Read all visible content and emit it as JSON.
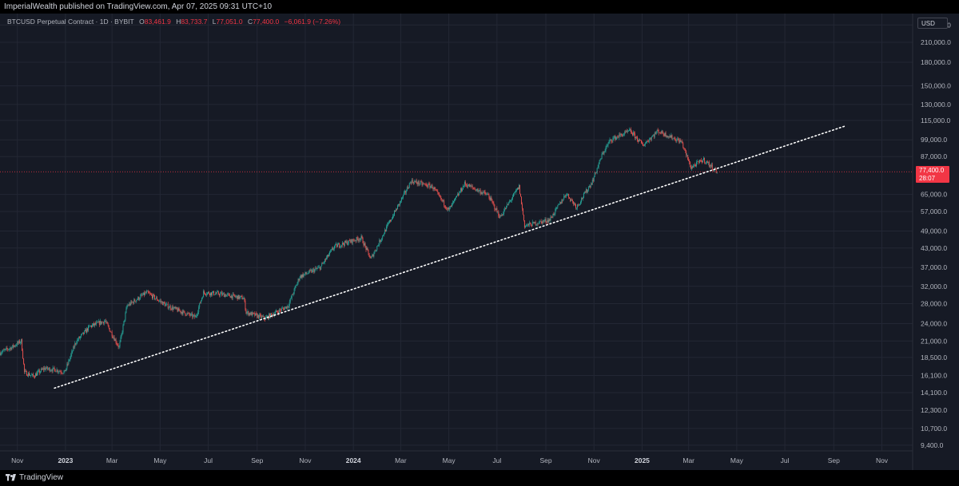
{
  "header": {
    "publisher_line": "ImperialWealth published on TradingView.com, Apr 07, 2025 09:31 UTC+10"
  },
  "legend": {
    "symbol": "BTCUSD Perpetual Contract · 1D · BYBIT",
    "open_label": "O",
    "open_value": "83,461.9",
    "high_label": "H",
    "high_value": "83,733.7",
    "low_label": "L",
    "low_value": "77,051.0",
    "close_label": "C",
    "close_value": "77,400.0",
    "change": "−6,061.9 (−7.26%)"
  },
  "price_scale": {
    "currency": "USD",
    "last_price": "77,400.0",
    "countdown": "28:07"
  },
  "footer": {
    "brand": "TradingView"
  },
  "colors": {
    "background": "#161a25",
    "up": "#26a69a",
    "down": "#ef5350",
    "grid": "#232734",
    "text": "#b2b5be",
    "price_line": "#f23645",
    "trendline": "#ffffff"
  },
  "chart_data": {
    "type": "candlestick",
    "symbol": "BTCUSD",
    "exchange": "BYBIT",
    "interval": "1D",
    "y_scale": "log",
    "x_range": [
      "2022-10-10",
      "2025-12-10"
    ],
    "y_range": [
      9000,
      262000
    ],
    "grid": true,
    "x_tick_labels": [
      {
        "label": "Nov",
        "date": "2022-11-01"
      },
      {
        "label": "2023",
        "date": "2023-01-01"
      },
      {
        "label": "Mar",
        "date": "2023-03-01"
      },
      {
        "label": "May",
        "date": "2023-05-01"
      },
      {
        "label": "Jul",
        "date": "2023-07-01"
      },
      {
        "label": "Sep",
        "date": "2023-09-01"
      },
      {
        "label": "Nov",
        "date": "2023-11-01"
      },
      {
        "label": "2024",
        "date": "2024-01-01"
      },
      {
        "label": "Mar",
        "date": "2024-03-01"
      },
      {
        "label": "May",
        "date": "2024-05-01"
      },
      {
        "label": "Jul",
        "date": "2024-07-01"
      },
      {
        "label": "Sep",
        "date": "2024-09-01"
      },
      {
        "label": "Nov",
        "date": "2024-11-01"
      },
      {
        "label": "2025",
        "date": "2025-01-01"
      },
      {
        "label": "Mar",
        "date": "2025-03-01"
      },
      {
        "label": "May",
        "date": "2025-05-01"
      },
      {
        "label": "Jul",
        "date": "2025-07-01"
      },
      {
        "label": "Sep",
        "date": "2025-09-01"
      },
      {
        "label": "Nov",
        "date": "2025-11-01"
      }
    ],
    "y_tick_labels": [
      {
        "label": "240,000.0",
        "value": 240000
      },
      {
        "label": "210,000.0",
        "value": 210000
      },
      {
        "label": "180,000.0",
        "value": 180000
      },
      {
        "label": "150,000.0",
        "value": 150000
      },
      {
        "label": "130,000.0",
        "value": 130000
      },
      {
        "label": "115,000.0",
        "value": 115000
      },
      {
        "label": "99,000.0",
        "value": 99000
      },
      {
        "label": "87,000.0",
        "value": 87000
      },
      {
        "label": "65,000.0",
        "value": 65000
      },
      {
        "label": "57,000.0",
        "value": 57000
      },
      {
        "label": "49,000.0",
        "value": 49000
      },
      {
        "label": "43,000.0",
        "value": 43000
      },
      {
        "label": "37,000.0",
        "value": 37000
      },
      {
        "label": "32,000.0",
        "value": 32000
      },
      {
        "label": "28,000.0",
        "value": 28000
      },
      {
        "label": "24,000.0",
        "value": 24000
      },
      {
        "label": "21,000.0",
        "value": 21000
      },
      {
        "label": "18,500.0",
        "value": 18500
      },
      {
        "label": "16,100.0",
        "value": 16100
      },
      {
        "label": "14,100.0",
        "value": 14100
      },
      {
        "label": "12,300.0",
        "value": 12300
      },
      {
        "label": "10,700.0",
        "value": 10700
      },
      {
        "label": "9,400.0",
        "value": 9400
      }
    ],
    "last_price": 77400,
    "close_series": [
      {
        "date": "2022-10-10",
        "close": 19200
      },
      {
        "date": "2022-10-25",
        "close": 20000
      },
      {
        "date": "2022-11-06",
        "close": 21000
      },
      {
        "date": "2022-11-10",
        "close": 16500
      },
      {
        "date": "2022-11-21",
        "close": 16000
      },
      {
        "date": "2022-12-05",
        "close": 17000
      },
      {
        "date": "2022-12-20",
        "close": 16800
      },
      {
        "date": "2022-12-31",
        "close": 16500
      },
      {
        "date": "2023-01-14",
        "close": 20800
      },
      {
        "date": "2023-02-01",
        "close": 23500
      },
      {
        "date": "2023-02-20",
        "close": 24500
      },
      {
        "date": "2023-03-10",
        "close": 20000
      },
      {
        "date": "2023-03-20",
        "close": 27500
      },
      {
        "date": "2023-04-14",
        "close": 30500
      },
      {
        "date": "2023-05-10",
        "close": 27500
      },
      {
        "date": "2023-06-15",
        "close": 25200
      },
      {
        "date": "2023-06-25",
        "close": 30500
      },
      {
        "date": "2023-07-15",
        "close": 30200
      },
      {
        "date": "2023-08-15",
        "close": 29200
      },
      {
        "date": "2023-08-18",
        "close": 26200
      },
      {
        "date": "2023-09-11",
        "close": 25000
      },
      {
        "date": "2023-10-10",
        "close": 27500
      },
      {
        "date": "2023-10-25",
        "close": 34500
      },
      {
        "date": "2023-11-20",
        "close": 37000
      },
      {
        "date": "2023-12-08",
        "close": 43500
      },
      {
        "date": "2024-01-11",
        "close": 46500
      },
      {
        "date": "2024-01-23",
        "close": 39500
      },
      {
        "date": "2024-02-15",
        "close": 52000
      },
      {
        "date": "2024-03-14",
        "close": 72000
      },
      {
        "date": "2024-04-10",
        "close": 69000
      },
      {
        "date": "2024-05-01",
        "close": 57500
      },
      {
        "date": "2024-05-21",
        "close": 70500
      },
      {
        "date": "2024-06-20",
        "close": 64500
      },
      {
        "date": "2024-07-05",
        "close": 54500
      },
      {
        "date": "2024-07-29",
        "close": 69000
      },
      {
        "date": "2024-08-05",
        "close": 51000
      },
      {
        "date": "2024-09-06",
        "close": 53500
      },
      {
        "date": "2024-09-27",
        "close": 65500
      },
      {
        "date": "2024-10-10",
        "close": 59000
      },
      {
        "date": "2024-10-30",
        "close": 72000
      },
      {
        "date": "2024-11-12",
        "close": 89000
      },
      {
        "date": "2024-11-22",
        "close": 99000
      },
      {
        "date": "2024-12-17",
        "close": 106000
      },
      {
        "date": "2025-01-02",
        "close": 95000
      },
      {
        "date": "2025-01-21",
        "close": 106000
      },
      {
        "date": "2025-02-20",
        "close": 97500
      },
      {
        "date": "2025-03-04",
        "close": 80000
      },
      {
        "date": "2025-03-20",
        "close": 85000
      },
      {
        "date": "2025-04-06",
        "close": 77400
      }
    ],
    "annotations": [
      {
        "type": "trendline",
        "style": "dotted",
        "start": {
          "date": "2022-12-18",
          "price": 14600
        },
        "end": {
          "date": "2025-09-15",
          "price": 110000
        }
      }
    ]
  }
}
